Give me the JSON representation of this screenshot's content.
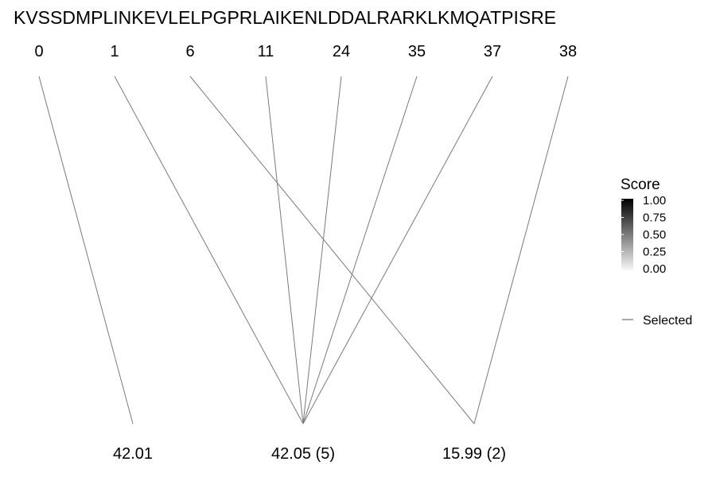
{
  "chart_data": {
    "type": "bipartite-line",
    "sequence": "KVSSDMPLINKEVLELPGPRLAIKENLDDALRARKLKMQATPISRE",
    "positions": [
      "0",
      "1",
      "6",
      "11",
      "24",
      "35",
      "37",
      "38"
    ],
    "masses": [
      "42.01",
      "42.05 (5)",
      "15.99 (2)"
    ],
    "edges": [
      {
        "from": 0,
        "to": 0
      },
      {
        "from": 1,
        "to": 1
      },
      {
        "from": 3,
        "to": 1
      },
      {
        "from": 4,
        "to": 1
      },
      {
        "from": 5,
        "to": 1
      },
      {
        "from": 6,
        "to": 1
      },
      {
        "from": 2,
        "to": 2
      },
      {
        "from": 7,
        "to": 2
      }
    ],
    "legend": {
      "score_title": "Score",
      "score_ticks": [
        "1.00",
        "0.75",
        "0.50",
        "0.25",
        "0.00"
      ],
      "selected_label": "Selected"
    }
  }
}
